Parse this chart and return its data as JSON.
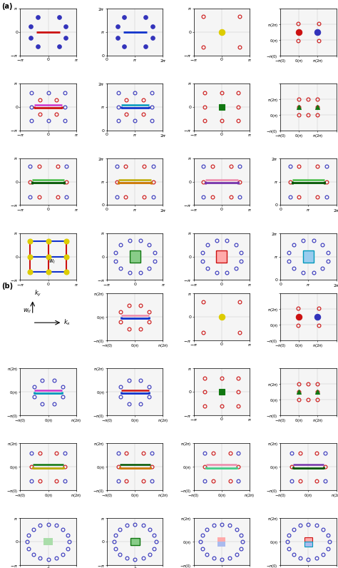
{
  "bg_color": "#f5f5f5",
  "grid_color": "#c8c8c8",
  "blue_dot": "#3333bb",
  "red_dot": "#cc1111",
  "yellow_dot": "#ddcc00",
  "green_dot": "#117711",
  "red_bar": "#cc1111",
  "magenta_bar": "#cc33cc",
  "blue_bar": "#1133cc",
  "cyan_bar": "#0099bb",
  "green_bar": "#117711",
  "dark_green_bar": "#005500",
  "yellow_bar": "#bbaa00",
  "orange_bar": "#cc7700",
  "pink_bar": "#ee88aa",
  "purple_bar": "#7733aa",
  "light_green_box": "#aaddaa",
  "light_green_box2": "#88cc88",
  "light_red_box": "#ffaaaa",
  "light_blue_box": "#aabbee",
  "light_cyan_box": "#99ccee"
}
